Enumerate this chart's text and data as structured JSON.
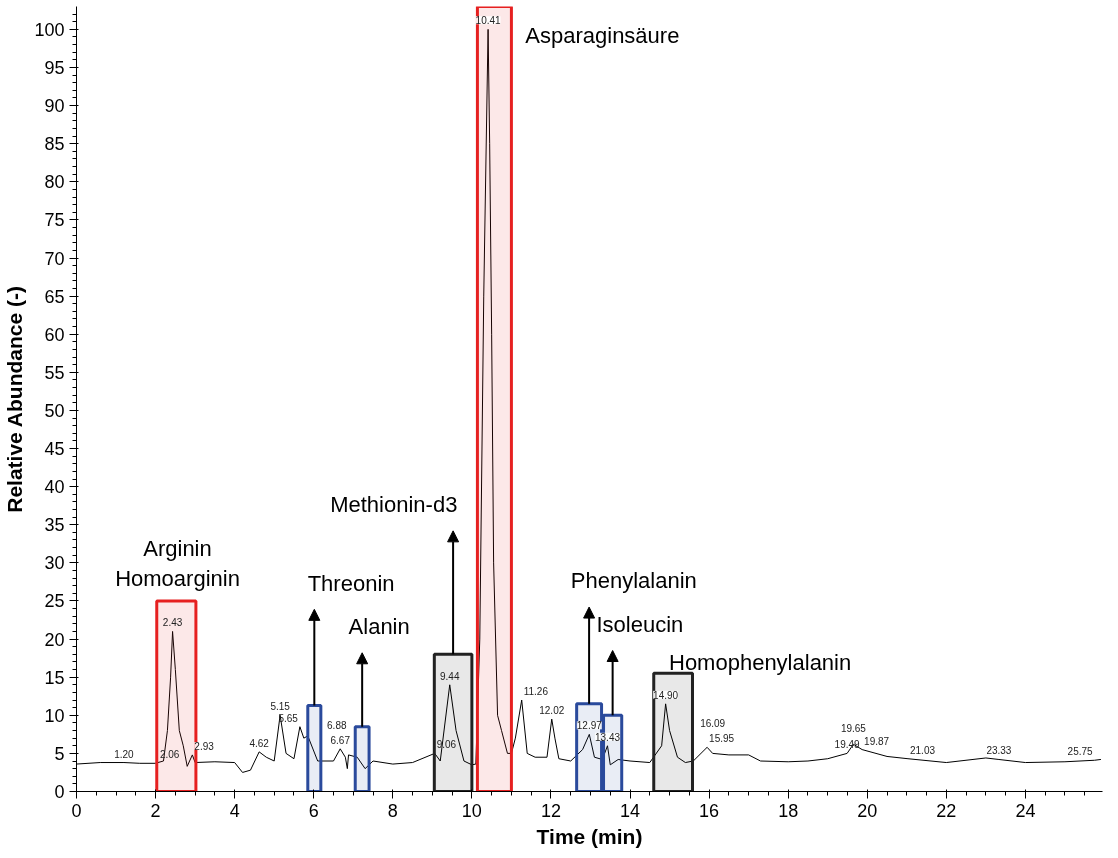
{
  "chart_data": {
    "type": "line",
    "xlabel": "Time (min)",
    "ylabel": "Relative Abundance (-)",
    "xlim": [
      0,
      25.95
    ],
    "xticks": [
      0,
      2,
      4,
      6,
      8,
      10,
      12,
      14,
      16,
      18,
      20,
      22,
      24
    ],
    "ylim": [
      0,
      103
    ],
    "yticks": [
      0,
      5,
      10,
      15,
      20,
      25,
      30,
      35,
      40,
      45,
      50,
      55,
      60,
      65,
      70,
      75,
      80,
      85,
      90,
      95,
      100
    ],
    "grid": false,
    "marker": "none",
    "line_style": "solid",
    "series": [
      {
        "color": "#000000",
        "x": [
          0,
          0.6,
          1.2,
          1.6,
          2.0,
          2.06,
          2.2,
          2.3,
          2.38,
          2.43,
          2.5,
          2.6,
          2.7,
          2.8,
          2.93,
          3.0,
          3.5,
          4.0,
          4.2,
          4.4,
          4.62,
          4.8,
          5.0,
          5.15,
          5.3,
          5.5,
          5.65,
          5.75,
          5.85,
          6.1,
          6.5,
          6.67,
          6.8,
          6.85,
          6.88,
          7.1,
          7.3,
          7.5,
          8.0,
          8.5,
          9.06,
          9.2,
          9.44,
          9.6,
          9.8,
          10.0,
          10.1,
          10.2,
          10.3,
          10.41,
          10.45,
          10.5,
          10.55,
          10.65,
          10.75,
          10.9,
          11.0,
          11.1,
          11.26,
          11.4,
          11.6,
          11.9,
          12.02,
          12.1,
          12.2,
          12.5,
          12.8,
          12.97,
          13.1,
          13.3,
          13.43,
          13.5,
          13.7,
          14.0,
          14.5,
          14.8,
          14.9,
          15.0,
          15.2,
          15.4,
          15.6,
          15.95,
          16.09,
          16.5,
          17.0,
          17.3,
          18.0,
          18.5,
          19.0,
          19.49,
          19.65,
          19.87,
          20.5,
          21.03,
          22.0,
          23.0,
          23.33,
          24.0,
          25.0,
          25.75,
          25.9
        ],
        "values": [
          3.6,
          3.8,
          3.8,
          3.7,
          3.7,
          3.8,
          4.0,
          8,
          15,
          21,
          16,
          8,
          6,
          3.3,
          4.8,
          3.8,
          3.9,
          3.8,
          2.5,
          2.8,
          5.2,
          4.5,
          4.0,
          10,
          5,
          4.3,
          8.5,
          7,
          7.3,
          4,
          4.0,
          5.6,
          4.5,
          3.0,
          4.8,
          4.5,
          3.0,
          4.0,
          3.6,
          3.8,
          5.0,
          4.0,
          14,
          8,
          4.0,
          3.5,
          3.6,
          20,
          65,
          100,
          85,
          60,
          30,
          10,
          8,
          5,
          5,
          7,
          12,
          5,
          4.5,
          4.5,
          9.5,
          7,
          4.3,
          4.0,
          5.5,
          7.5,
          4.5,
          4.2,
          6.0,
          3.5,
          4.2,
          4.0,
          3.8,
          6,
          11.5,
          8,
          4.5,
          3.8,
          4.0,
          5.8,
          5.0,
          4.8,
          4.8,
          4.0,
          3.9,
          4.0,
          4.3,
          5.0,
          6.2,
          5.5,
          4.6,
          4.3,
          3.8,
          4.4,
          4.2,
          3.8,
          3.9,
          4.1,
          4.2
        ]
      }
    ],
    "bands": [
      {
        "axis": "x",
        "from": 2.03,
        "to": 3.02,
        "color": "#e62020",
        "label": "Arginin\nHomoarginin"
      },
      {
        "axis": "x",
        "from": 5.85,
        "to": 6.18,
        "color": "#2a4a9c",
        "label": "Threonin"
      },
      {
        "axis": "x",
        "from": 7.05,
        "to": 7.4,
        "color": "#2a4a9c",
        "label": "Alanin"
      },
      {
        "axis": "x",
        "from": 9.05,
        "to": 10.0,
        "color": "#222222",
        "label": "Methionin-d3"
      },
      {
        "axis": "x",
        "from": 10.14,
        "to": 11.0,
        "color": "#e62020",
        "label": "Asparaginsäure"
      },
      {
        "axis": "x",
        "from": 12.65,
        "to": 13.28,
        "color": "#2a4a9c",
        "label": "Phenylalanin"
      },
      {
        "axis": "x",
        "from": 13.33,
        "to": 13.79,
        "color": "#2a4a9c",
        "label": "Isoleucin"
      },
      {
        "axis": "x",
        "from": 14.6,
        "to": 15.58,
        "color": "#222222",
        "label": "Homophenylalanin"
      }
    ],
    "annotations": [
      {
        "text": "1.20",
        "x": 1.2,
        "y": 3.8
      },
      {
        "text": "2.06",
        "x": 2.06,
        "y": 3.8
      },
      {
        "text": "2.43",
        "x": 2.43,
        "y": 21
      },
      {
        "text": "2.93",
        "x": 2.93,
        "y": 4.8
      },
      {
        "text": "4.62",
        "x": 4.62,
        "y": 5.2
      },
      {
        "text": "5.15",
        "x": 5.15,
        "y": 10
      },
      {
        "text": "5.65",
        "x": 5.65,
        "y": 8.5
      },
      {
        "text": "6.67",
        "x": 6.67,
        "y": 5.6
      },
      {
        "text": "6.88",
        "x": 6.88,
        "y": 4.8
      },
      {
        "text": "9.06",
        "x": 9.06,
        "y": 5.0
      },
      {
        "text": "9.44",
        "x": 9.44,
        "y": 14
      },
      {
        "text": "10.41",
        "x": 10.41,
        "y": 100
      },
      {
        "text": "11.26",
        "x": 11.26,
        "y": 12
      },
      {
        "text": "12.02",
        "x": 12.02,
        "y": 9.5
      },
      {
        "text": "12.97",
        "x": 12.97,
        "y": 7.5
      },
      {
        "text": "13.43",
        "x": 13.43,
        "y": 6.0
      },
      {
        "text": "14.90",
        "x": 14.9,
        "y": 11.5
      },
      {
        "text": "15.95",
        "x": 15.95,
        "y": 5.8
      },
      {
        "text": "16.09",
        "x": 16.09,
        "y": 5.0
      },
      {
        "text": "19.49",
        "x": 19.49,
        "y": 5.0
      },
      {
        "text": "19.65",
        "x": 19.65,
        "y": 6.2
      },
      {
        "text": "19.87",
        "x": 19.87,
        "y": 5.5
      },
      {
        "text": "21.03",
        "x": 21.03,
        "y": 4.3
      },
      {
        "text": "23.33",
        "x": 23.33,
        "y": 4.2
      },
      {
        "text": "25.75",
        "x": 25.75,
        "y": 4.1
      }
    ]
  }
}
